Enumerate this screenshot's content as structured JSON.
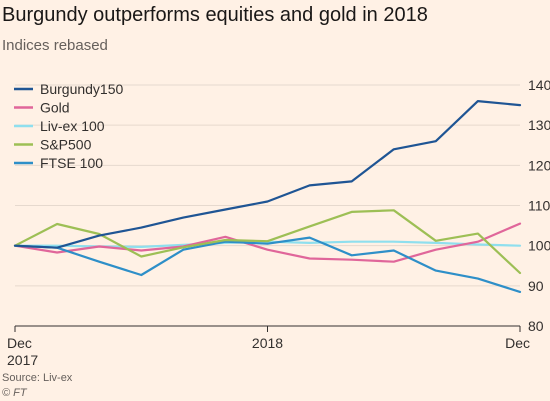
{
  "title": "Burgundy outperforms equities and gold in 2018",
  "subtitle": "Indices rebased",
  "source": "Source: Liv-ex",
  "copyright": "© FT",
  "chart_data": {
    "type": "line",
    "x": [
      0,
      1,
      2,
      3,
      4,
      5,
      6,
      7,
      8,
      9,
      10,
      11,
      12
    ],
    "xticks": [
      {
        "x": 0,
        "label": "Dec",
        "sublabel": "2017"
      },
      {
        "x": 6,
        "label": "2018",
        "sublabel": ""
      },
      {
        "x": 12,
        "label": "Dec",
        "sublabel": ""
      }
    ],
    "ylim": [
      80,
      140
    ],
    "yticks": [
      80,
      90,
      100,
      110,
      120,
      130,
      140
    ],
    "grid": true,
    "legend": "top-left",
    "series": [
      {
        "name": "Burgundy150",
        "color": "#1f5594",
        "values": [
          100,
          99.5,
          102.5,
          104.5,
          107,
          109,
          111,
          115,
          116,
          124,
          126,
          136,
          135
        ]
      },
      {
        "name": "Gold",
        "color": "#e0669a",
        "values": [
          100,
          98.3,
          99.8,
          98.8,
          99.8,
          102.2,
          99,
          96.8,
          96.5,
          96,
          99,
          101,
          105.5
        ]
      },
      {
        "name": "Liv-ex 100",
        "color": "#8fdfee",
        "values": [
          100,
          100,
          99.8,
          99.7,
          100.2,
          100.7,
          101,
          100.7,
          101,
          101,
          100.7,
          100.3,
          100
        ]
      },
      {
        "name": "S&P500",
        "color": "#9dbf55",
        "values": [
          100,
          105.4,
          102.9,
          97.3,
          99.6,
          101.4,
          101.1,
          104.8,
          108.4,
          108.8,
          101.2,
          103,
          93.2
        ]
      },
      {
        "name": "FTSE 100",
        "color": "#2e8fc8",
        "values": [
          100,
          99.5,
          96,
          92.7,
          99,
          101,
          100.5,
          102,
          97.6,
          98.8,
          93.8,
          91.8,
          88.5
        ]
      }
    ]
  }
}
